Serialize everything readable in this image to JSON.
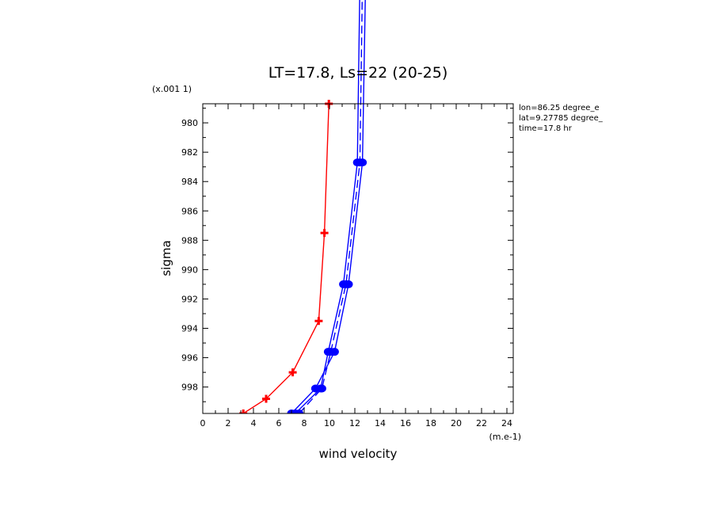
{
  "chart_data": {
    "type": "line",
    "title": "LT=17.8, Ls=22 (20-25)",
    "xlabel": "wind velocity",
    "ylabel": "sigma",
    "x_unit_label": "(m.e-1)",
    "y_unit_label": "(x.001 1)",
    "xlim": [
      0,
      24.5
    ],
    "ylim": [
      999.8,
      978.7
    ],
    "x_ticks": [
      0,
      2,
      4,
      6,
      8,
      10,
      12,
      14,
      16,
      18,
      20,
      22,
      24
    ],
    "x_tick_labels": [
      "0",
      "2",
      "4",
      "6",
      "8",
      "10",
      "12",
      "14",
      "16",
      "18",
      "20",
      "22",
      "24"
    ],
    "y_ticks": [
      980,
      982,
      984,
      986,
      988,
      990,
      992,
      994,
      996,
      998
    ],
    "y_tick_labels": [
      "980",
      "982",
      "984",
      "986",
      "988",
      "990",
      "992",
      "994",
      "996",
      "998"
    ],
    "info_lines": [
      "lon=86.25 degree_e",
      "lat=9.27785 degree_",
      "time=17.8 hr"
    ],
    "series": [
      {
        "color": "#ff0000",
        "dash": "solid",
        "marker": "plus",
        "points": [
          [
            9.95,
            978.7
          ],
          [
            9.6,
            987.5
          ],
          [
            9.15,
            993.5
          ],
          [
            7.1,
            997.0
          ],
          [
            5.0,
            998.8
          ],
          [
            3.2,
            999.8
          ]
        ]
      },
      {
        "color": "#0000ff",
        "dash": "solid",
        "marker": "circle",
        "points": [
          [
            13.1,
            958.0
          ],
          [
            12.6,
            982.7
          ],
          [
            11.5,
            991.0
          ],
          [
            10.4,
            995.6
          ],
          [
            8.9,
            998.1
          ],
          [
            7.0,
            999.8
          ]
        ]
      },
      {
        "color": "#0000ff",
        "dash": "dashed",
        "marker": "circle",
        "points": [
          [
            12.8,
            958.0
          ],
          [
            12.4,
            982.7
          ],
          [
            11.3,
            991.0
          ],
          [
            10.1,
            995.6
          ],
          [
            9.4,
            998.1
          ],
          [
            7.6,
            999.8
          ]
        ]
      },
      {
        "color": "#0000ff",
        "dash": "solid",
        "marker": "circle",
        "points": [
          [
            12.6,
            958.0
          ],
          [
            12.2,
            982.7
          ],
          [
            11.1,
            991.0
          ],
          [
            9.9,
            995.6
          ],
          [
            9.3,
            998.1
          ],
          [
            7.3,
            999.8
          ]
        ]
      }
    ]
  }
}
